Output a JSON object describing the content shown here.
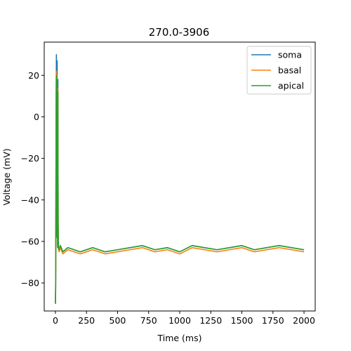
{
  "chart_data": {
    "type": "line",
    "title": "270.0-3906",
    "xlabel": "Time (ms)",
    "ylabel": "Voltage (mV)",
    "xlim": [
      -90,
      2090
    ],
    "ylim": [
      -93.5,
      36
    ],
    "xticks": [
      0,
      250,
      500,
      750,
      1000,
      1250,
      1500,
      1750,
      2000
    ],
    "xtick_labels": [
      "0",
      "250",
      "500",
      "750",
      "1000",
      "1250",
      "1500",
      "1750",
      "2000"
    ],
    "yticks": [
      -80,
      -60,
      -40,
      -20,
      0,
      20
    ],
    "ytick_labels": [
      "−80",
      "−60",
      "−40",
      "−20",
      "0",
      "20"
    ],
    "grid": false,
    "legend_position": "top-right",
    "series": [
      {
        "name": "soma",
        "color": "#1f77b4",
        "x": [
          0,
          2,
          4,
          6,
          8,
          10,
          12,
          14,
          16,
          18,
          20,
          22,
          25,
          30,
          40,
          60,
          100,
          150,
          200,
          300,
          400,
          500,
          600,
          700,
          800,
          900,
          1000,
          1100,
          1200,
          1300,
          1400,
          1500,
          1600,
          1700,
          1800,
          1900,
          2000
        ],
        "values": [
          -90,
          -80,
          -40,
          10,
          30,
          -20,
          -55,
          27,
          -40,
          -62,
          18,
          -50,
          -63,
          -64,
          -62,
          -65,
          -63,
          -64,
          -65,
          -63,
          -65,
          -64,
          -63,
          -62,
          -64,
          -63,
          -65,
          -62,
          -63,
          -64,
          -63,
          -62,
          -64,
          -63,
          -62,
          -63,
          -64
        ]
      },
      {
        "name": "basal",
        "color": "#ff7f0e",
        "x": [
          0,
          2,
          4,
          6,
          8,
          10,
          12,
          14,
          16,
          18,
          20,
          22,
          25,
          30,
          40,
          60,
          100,
          150,
          200,
          300,
          400,
          500,
          600,
          700,
          800,
          900,
          1000,
          1100,
          1200,
          1300,
          1400,
          1500,
          1600,
          1700,
          1800,
          1900,
          2000
        ],
        "values": [
          -90,
          -82,
          -45,
          5,
          22,
          -25,
          -57,
          20,
          -45,
          -63,
          14,
          -52,
          -64,
          -65,
          -63,
          -66,
          -64,
          -65,
          -66,
          -64,
          -66,
          -65,
          -64,
          -63,
          -65,
          -64,
          -66,
          -63,
          -64,
          -65,
          -64,
          -63,
          -65,
          -64,
          -63,
          -64,
          -65
        ]
      },
      {
        "name": "apical",
        "color": "#2ca02c",
        "x": [
          0,
          2,
          4,
          6,
          8,
          10,
          12,
          14,
          16,
          18,
          20,
          22,
          25,
          30,
          40,
          60,
          100,
          150,
          200,
          300,
          400,
          500,
          600,
          700,
          800,
          900,
          1000,
          1100,
          1200,
          1300,
          1400,
          1500,
          1600,
          1700,
          1800,
          1900,
          2000
        ],
        "values": [
          -90,
          -83,
          -48,
          2,
          20,
          -28,
          -58,
          18,
          -48,
          -63,
          12,
          -53,
          -63,
          -64,
          -62,
          -65,
          -63,
          -64,
          -65,
          -63,
          -65,
          -64,
          -63,
          -62,
          -64,
          -63,
          -65,
          -62,
          -63,
          -64,
          -63,
          -62,
          -64,
          -63,
          -62,
          -63,
          -64
        ]
      }
    ]
  }
}
